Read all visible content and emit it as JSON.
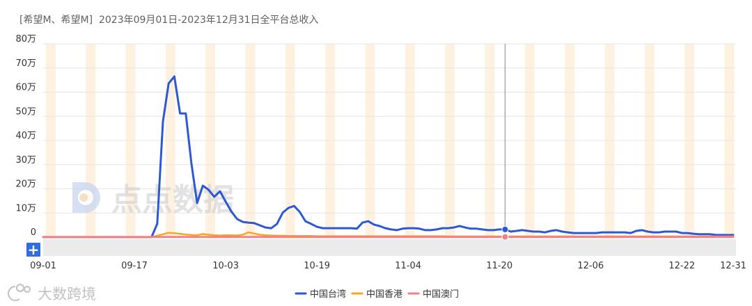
{
  "watermarks": {
    "center": "点点数据",
    "corner": "大数跨境"
  },
  "zoom_button": {
    "label": "+"
  },
  "chart_data": {
    "type": "line",
    "title": "[希望M、希望M]  2023年09月01日-2023年12月31日全平台总收入",
    "grid": true,
    "legend": "bottom",
    "ylim": [
      0,
      80
    ],
    "yticks": [
      "0",
      "10万",
      "20万",
      "30万",
      "40万",
      "50万",
      "60万",
      "70万",
      "80万"
    ],
    "xticks": [
      "09-01",
      "09-17",
      "10-03",
      "10-19",
      "11-04",
      "11-20",
      "12-06",
      "12-22",
      "12-31"
    ],
    "crosshair": "11-21",
    "x": [
      "09-01",
      "09-02",
      "09-03",
      "09-04",
      "09-05",
      "09-06",
      "09-07",
      "09-08",
      "09-09",
      "09-10",
      "09-11",
      "09-12",
      "09-13",
      "09-14",
      "09-15",
      "09-16",
      "09-17",
      "09-18",
      "09-19",
      "09-20",
      "09-21",
      "09-22",
      "09-23",
      "09-24",
      "09-25",
      "09-26",
      "09-27",
      "09-28",
      "09-29",
      "09-30",
      "10-01",
      "10-02",
      "10-03",
      "10-04",
      "10-05",
      "10-06",
      "10-07",
      "10-08",
      "10-09",
      "10-10",
      "10-11",
      "10-12",
      "10-13",
      "10-14",
      "10-15",
      "10-16",
      "10-17",
      "10-18",
      "10-19",
      "10-20",
      "10-21",
      "10-22",
      "10-23",
      "10-24",
      "10-25",
      "10-26",
      "10-27",
      "10-28",
      "10-29",
      "10-30",
      "10-31",
      "11-01",
      "11-02",
      "11-03",
      "11-04",
      "11-05",
      "11-06",
      "11-07",
      "11-08",
      "11-09",
      "11-10",
      "11-11",
      "11-12",
      "11-13",
      "11-14",
      "11-15",
      "11-16",
      "11-17",
      "11-18",
      "11-19",
      "11-20",
      "11-21",
      "11-22",
      "11-23",
      "11-24",
      "11-25",
      "11-26",
      "11-27",
      "11-28",
      "11-29",
      "11-30",
      "12-01",
      "12-02",
      "12-03",
      "12-04",
      "12-05",
      "12-06",
      "12-07",
      "12-08",
      "12-09",
      "12-10",
      "12-11",
      "12-12",
      "12-13",
      "12-14",
      "12-15",
      "12-16",
      "12-17",
      "12-18",
      "12-19",
      "12-20",
      "12-21",
      "12-22",
      "12-23",
      "12-24",
      "12-25",
      "12-26",
      "12-27",
      "12-28",
      "12-29",
      "12-30",
      "12-31"
    ],
    "series": [
      {
        "name": "中国台湾",
        "color": "#2d58d4",
        "values": [
          0,
          0,
          0,
          0,
          0,
          0,
          0,
          0,
          0,
          0,
          0,
          0,
          0,
          0,
          0,
          0,
          0,
          0,
          0,
          0,
          5.5,
          47.8,
          63.6,
          66.5,
          51.2,
          51.2,
          30.5,
          14.1,
          21.3,
          19.6,
          16.7,
          19.0,
          14.7,
          10.6,
          7.5,
          6.3,
          6.0,
          5.8,
          4.9,
          4.0,
          3.7,
          5.5,
          10.1,
          12.1,
          12.9,
          10.4,
          6.6,
          5.5,
          4.3,
          3.7,
          3.7,
          3.7,
          3.7,
          3.7,
          3.7,
          3.5,
          6.0,
          6.6,
          5.2,
          4.6,
          3.7,
          3.2,
          2.9,
          3.5,
          3.7,
          3.7,
          3.5,
          2.9,
          2.9,
          3.2,
          3.7,
          3.7,
          4.0,
          4.6,
          4.0,
          3.5,
          3.5,
          3.2,
          2.9,
          2.9,
          3.2,
          3.2,
          2.3,
          2.6,
          2.9,
          2.6,
          2.3,
          2.3,
          2.0,
          2.6,
          2.9,
          2.3,
          2.0,
          1.7,
          1.7,
          1.7,
          1.7,
          1.7,
          2.0,
          2.0,
          2.0,
          2.0,
          2.0,
          1.7,
          2.6,
          2.9,
          2.3,
          2.0,
          2.0,
          2.3,
          2.3,
          2.3,
          1.7,
          1.7,
          1.4,
          1.2,
          1.2,
          1.2,
          0.9,
          0.9,
          0.9,
          0.9
        ]
      },
      {
        "name": "中国香港",
        "color": "#f7a623",
        "values": [
          0,
          0,
          0,
          0,
          0,
          0,
          0,
          0,
          0,
          0,
          0,
          0,
          0,
          0,
          0,
          0,
          0,
          0,
          0,
          0,
          0.6,
          1.2,
          1.8,
          1.6,
          1.4,
          1.1,
          0.9,
          0.8,
          1.3,
          1.0,
          0.8,
          0.7,
          0.8,
          0.8,
          0.7,
          1.0,
          2.0,
          1.5,
          1.0,
          0.8,
          0.7,
          0.6,
          0.6,
          0.5,
          0.5,
          0.5,
          0.5,
          0.5,
          0.4,
          0.4,
          0.4,
          0.4,
          0.4,
          0.4,
          0.4,
          0.4,
          0.4,
          0.4,
          0.4,
          0.4,
          0.4,
          0.4,
          0.4,
          0.4,
          0.4,
          0.4,
          0.4,
          0.4,
          0.4,
          0.4,
          0.4,
          0.3,
          0.3,
          0.3,
          0.3,
          0.3,
          0.3,
          0.3,
          0.3,
          0.3,
          0.3,
          0.3,
          0.3,
          0.3,
          0.3,
          0.3,
          0.3,
          0.3,
          0.3,
          0.3,
          0.3,
          0.3,
          0.3,
          0.3,
          0.3,
          0.3,
          0.3,
          0.3,
          0.3,
          0.3,
          0.3,
          0.3,
          0.3,
          0.3,
          0.3,
          0.3,
          0.3,
          0.3,
          0.3,
          0.3,
          0.3,
          0.3,
          0.3,
          0.3,
          0.3,
          0.3,
          0.3,
          0.3,
          0.3,
          0.3,
          0.3,
          0.3
        ]
      },
      {
        "name": "中国澳门",
        "color": "#f0808a",
        "values": [
          0.1,
          0.1,
          0.1,
          0.1,
          0.1,
          0.1,
          0.1,
          0.1,
          0.1,
          0.1,
          0.1,
          0.1,
          0.1,
          0.1,
          0.1,
          0.1,
          0.1,
          0.1,
          0.1,
          0.1,
          0.1,
          0.1,
          0.1,
          0.1,
          0.1,
          0.1,
          0.1,
          0.1,
          0.1,
          0.1,
          0.1,
          0.1,
          0.1,
          0.1,
          0.1,
          0.1,
          0.1,
          0.1,
          0.1,
          0.1,
          0.1,
          0.1,
          0.1,
          0.1,
          0.1,
          0.1,
          0.1,
          0.1,
          0.1,
          0.1,
          0.1,
          0.1,
          0.1,
          0.1,
          0.1,
          0.1,
          0.1,
          0.1,
          0.1,
          0.1,
          0.1,
          0.1,
          0.1,
          0.1,
          0.1,
          0.1,
          0.1,
          0.1,
          0.1,
          0.1,
          0.1,
          0.1,
          0.1,
          0.1,
          0.1,
          0.1,
          0.1,
          0.1,
          0.1,
          0.1,
          0.1,
          0.1,
          0.1,
          0.1,
          0.1,
          0.1,
          0.1,
          0.1,
          0.1,
          0.1,
          0.1,
          0.1,
          0.1,
          0.1,
          0.1,
          0.1,
          0.1,
          0.1,
          0.1,
          0.1,
          0.1,
          0.1,
          0.1,
          0.1,
          0.1,
          0.1,
          0.1,
          0.1,
          0.1,
          0.1,
          0.1,
          0.1,
          0.1,
          0.1,
          0.1,
          0.1,
          0.1,
          0.1,
          0.1,
          0.1,
          0.1,
          0.1
        ]
      }
    ]
  }
}
